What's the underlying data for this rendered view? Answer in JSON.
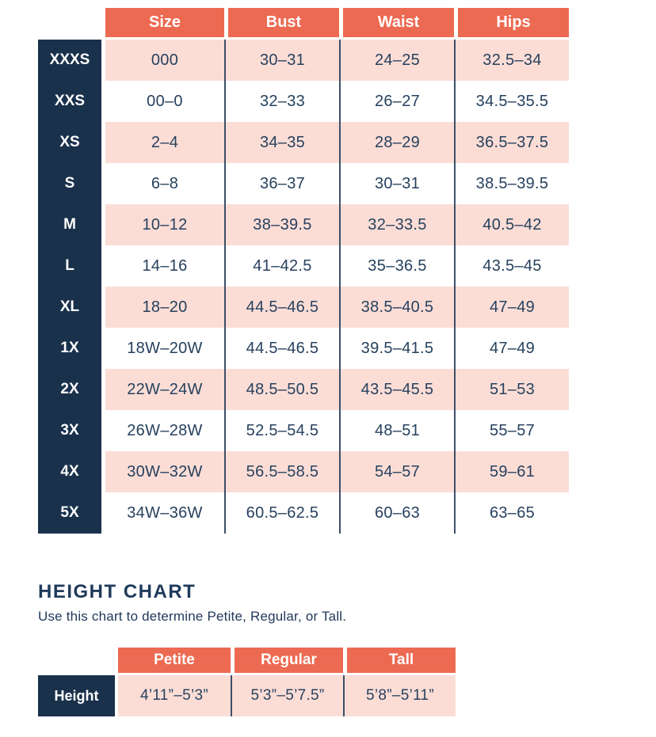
{
  "colors": {
    "coral_header": "#ED6A52",
    "navy_block": "#1A314C",
    "pink_row": "#FBDDD6",
    "text_navy": "#27415E",
    "grid_line": "#3D5068"
  },
  "chart_data": [
    {
      "type": "table",
      "columns": [
        "Size",
        "Bust",
        "Waist",
        "Hips"
      ],
      "row_labels": [
        "XXXS",
        "XXS",
        "XS",
        "S",
        "M",
        "L",
        "XL",
        "1X",
        "2X",
        "3X",
        "4X",
        "5X"
      ],
      "rows": [
        [
          "000",
          "30–31",
          "24–25",
          "32.5–34"
        ],
        [
          "00–0",
          "32–33",
          "26–27",
          "34.5–35.5"
        ],
        [
          "2–4",
          "34–35",
          "28–29",
          "36.5–37.5"
        ],
        [
          "6–8",
          "36–37",
          "30–31",
          "38.5–39.5"
        ],
        [
          "10–12",
          "38–39.5",
          "32–33.5",
          "40.5–42"
        ],
        [
          "14–16",
          "41–42.5",
          "35–36.5",
          "43.5–45"
        ],
        [
          "18–20",
          "44.5–46.5",
          "38.5–40.5",
          "47–49"
        ],
        [
          "18W–20W",
          "44.5–46.5",
          "39.5–41.5",
          "47–49"
        ],
        [
          "22W–24W",
          "48.5–50.5",
          "43.5–45.5",
          "51–53"
        ],
        [
          "26W–28W",
          "52.5–54.5",
          "48–51",
          "55–57"
        ],
        [
          "30W–32W",
          "56.5–58.5",
          "54–57",
          "59–61"
        ],
        [
          "34W–36W",
          "60.5–62.5",
          "60–63",
          "63–65"
        ]
      ],
      "layout": {
        "alternating_rows": "pink/white, first row pink",
        "grid": "vertical navy lines between data columns"
      }
    },
    {
      "type": "table",
      "title": "HEIGHT CHART",
      "subtitle": "Use this chart to determine Petite, Regular, or Tall.",
      "columns": [
        "Petite",
        "Regular",
        "Tall"
      ],
      "row_labels": [
        "Height"
      ],
      "rows": [
        [
          "4’11”–5’3”",
          "5’3”–5’7.5”",
          "5’8”–5’11”"
        ]
      ]
    }
  ]
}
